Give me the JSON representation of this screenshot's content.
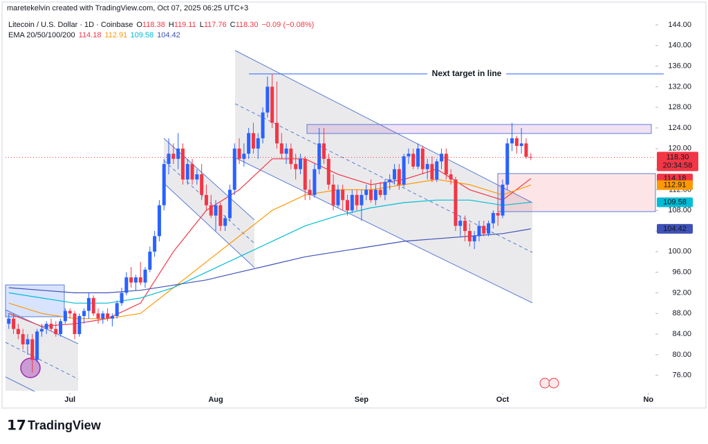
{
  "header": {
    "credit": "maretekelvin created with TradingView.com, Oct 07, 2025 06:25 UTC+3"
  },
  "chart_data": {
    "type": "candlestick",
    "title": "Litecoin / U.S. Dollar · 1D · Coinbase",
    "ohlc": [
      {
        "label": "O",
        "value": "118.38"
      },
      {
        "label": "H",
        "value": "119.11"
      },
      {
        "label": "L",
        "value": "117.76"
      },
      {
        "label": "C",
        "value": "118.30"
      }
    ],
    "change": "−0.09 (−0.08%)",
    "indicator": "EMA 20/50/100/200",
    "up_color": "#2962ff",
    "down_color": "#f23645",
    "candles": [
      [
        86,
        88,
        85,
        87
      ],
      [
        87,
        88,
        84,
        85
      ],
      [
        85,
        86,
        83,
        84
      ],
      [
        84,
        85,
        81,
        82
      ],
      [
        82,
        84,
        80,
        83
      ],
      [
        83,
        84,
        76.5,
        79
      ],
      [
        79,
        85,
        78.5,
        84.5
      ],
      [
        84.5,
        86,
        83.5,
        85
      ],
      [
        85,
        86.5,
        84,
        86
      ],
      [
        86,
        87,
        84.5,
        85
      ],
      [
        85,
        86.5,
        83.5,
        84
      ],
      [
        84,
        87,
        83.5,
        86.5
      ],
      [
        86.5,
        89,
        86,
        88.5
      ],
      [
        88.5,
        89,
        87,
        88
      ],
      [
        88,
        88.5,
        83,
        84
      ],
      [
        84,
        88,
        83.5,
        87.5
      ],
      [
        87.5,
        89,
        86,
        88.5
      ],
      [
        88.5,
        92,
        87,
        91
      ],
      [
        91,
        91.5,
        87.5,
        88
      ],
      [
        88,
        89,
        86,
        87
      ],
      [
        87,
        88.5,
        86,
        88
      ],
      [
        88,
        89,
        86.5,
        87
      ],
      [
        87,
        88,
        85.5,
        87.5
      ],
      [
        87.5,
        90.5,
        87,
        90
      ],
      [
        90,
        93,
        89.5,
        92
      ],
      [
        92,
        96,
        91.5,
        95
      ],
      [
        95,
        97,
        93,
        94
      ],
      [
        94,
        95.5,
        92.5,
        95
      ],
      [
        95,
        98,
        93.5,
        94
      ],
      [
        94,
        97,
        93,
        96.5
      ],
      [
        96.5,
        101,
        96,
        100
      ],
      [
        100,
        104,
        99,
        103
      ],
      [
        103,
        110,
        102,
        109
      ],
      [
        109,
        118,
        108,
        117
      ],
      [
        117,
        122,
        115,
        119
      ],
      [
        119,
        121,
        117,
        118
      ],
      [
        118,
        123,
        116,
        120
      ],
      [
        120,
        121,
        113,
        114
      ],
      [
        114,
        118,
        113,
        117
      ],
      [
        117,
        118,
        113,
        114
      ],
      [
        114,
        116,
        113,
        115
      ],
      [
        115,
        117,
        110,
        111
      ],
      [
        111,
        113,
        108,
        109
      ],
      [
        109,
        111,
        106.5,
        107
      ],
      [
        107,
        110,
        104,
        109
      ],
      [
        109,
        109.5,
        104,
        105
      ],
      [
        105,
        107,
        104,
        106.5
      ],
      [
        106.5,
        113,
        106,
        112
      ],
      [
        112,
        121,
        111,
        120
      ],
      [
        120,
        122,
        117,
        118
      ],
      [
        118,
        121,
        116.5,
        119
      ],
      [
        119,
        124,
        118,
        123
      ],
      [
        123,
        125,
        119,
        120
      ],
      [
        120,
        123,
        118,
        122
      ],
      [
        122,
        128,
        121,
        127
      ],
      [
        127,
        134,
        126,
        132
      ],
      [
        132,
        134.5,
        124,
        125
      ],
      [
        125,
        133,
        120,
        121
      ],
      [
        121,
        123,
        118,
        119
      ],
      [
        119,
        121,
        117,
        120
      ],
      [
        120,
        121,
        116,
        117
      ],
      [
        117,
        119,
        114,
        116
      ],
      [
        116,
        119,
        115,
        118
      ],
      [
        118,
        118.5,
        110,
        112
      ],
      [
        112,
        114,
        110,
        111
      ],
      [
        111,
        117,
        110.5,
        116
      ],
      [
        116,
        124,
        115,
        121
      ],
      [
        121,
        124,
        117,
        118
      ],
      [
        118,
        119,
        112,
        113
      ],
      [
        113,
        115,
        108,
        109
      ],
      [
        109,
        113,
        108.5,
        112
      ],
      [
        112,
        113,
        108,
        110
      ],
      [
        110,
        111,
        107,
        108
      ],
      [
        108,
        112,
        107.5,
        111
      ],
      [
        111,
        112,
        108,
        109
      ],
      [
        109,
        112,
        106,
        111
      ],
      [
        111,
        113,
        110,
        112
      ],
      [
        112,
        114,
        109.5,
        110
      ],
      [
        110,
        113,
        109,
        112
      ],
      [
        112,
        113.5,
        110.5,
        111
      ],
      [
        111,
        114,
        110,
        113.5
      ],
      [
        113.5,
        115,
        112,
        114
      ],
      [
        114,
        117,
        113,
        116
      ],
      [
        116,
        117,
        112,
        113
      ],
      [
        113,
        119,
        112.5,
        118.5
      ],
      [
        118.5,
        120,
        117,
        119
      ],
      [
        119,
        120,
        116,
        116.5
      ],
      [
        116.5,
        121,
        116,
        120
      ],
      [
        120,
        120.5,
        115,
        116
      ],
      [
        116,
        118,
        114,
        117
      ],
      [
        117,
        118.5,
        113.5,
        114
      ],
      [
        114,
        118,
        113.5,
        117.5
      ],
      [
        117.5,
        120,
        116,
        119
      ],
      [
        119,
        120,
        114,
        115
      ],
      [
        115,
        116,
        113,
        114
      ],
      [
        114,
        114.5,
        104,
        105
      ],
      [
        105,
        107,
        103,
        106
      ],
      [
        106,
        107,
        102,
        104
      ],
      [
        104,
        105.5,
        101,
        102
      ],
      [
        102,
        104,
        100.5,
        103
      ],
      [
        103,
        106,
        102,
        105
      ],
      [
        105,
        106,
        103,
        103.5
      ],
      [
        103.5,
        106,
        103,
        105.5
      ],
      [
        105.5,
        108,
        104.5,
        107.5
      ],
      [
        107.5,
        109,
        105,
        107
      ],
      [
        107,
        114,
        106.5,
        113
      ],
      [
        113,
        122,
        112,
        121
      ],
      [
        121,
        125,
        119.5,
        122
      ],
      [
        122,
        122.5,
        119,
        120.5
      ],
      [
        120.5,
        124,
        119,
        121
      ],
      [
        121,
        122,
        118,
        118.4
      ],
      [
        118.38,
        119.11,
        117.76,
        118.3
      ]
    ],
    "lines": [
      {
        "color": "#f23645",
        "x": [
          0,
          7,
          14,
          21,
          28,
          35,
          42,
          49,
          56,
          63,
          70,
          77,
          84,
          91,
          98,
          105,
          111
        ],
        "values": [
          88,
          85.5,
          86,
          87,
          90,
          100,
          108,
          112,
          118,
          118,
          115,
          113,
          114,
          116,
          112,
          110,
          114.18
        ]
      },
      {
        "color": "#ff9800",
        "x": [
          0,
          7,
          14,
          21,
          28,
          35,
          42,
          49,
          56,
          63,
          70,
          77,
          84,
          91,
          98,
          105,
          111
        ],
        "values": [
          90,
          88,
          87,
          87,
          88,
          93,
          98,
          103,
          108,
          111,
          112,
          112,
          113,
          114,
          113,
          111,
          112.91
        ]
      },
      {
        "color": "#00bcd4",
        "x": [
          0,
          7,
          14,
          21,
          28,
          35,
          42,
          49,
          56,
          63,
          70,
          77,
          84,
          91,
          98,
          105,
          111
        ],
        "values": [
          92,
          91,
          90,
          90,
          91,
          93,
          96,
          99,
          102,
          105,
          107,
          108.5,
          109.5,
          110,
          110,
          109,
          109.58
        ]
      },
      {
        "color": "#3f51b5",
        "x": [
          0,
          7,
          14,
          21,
          28,
          35,
          42,
          49,
          56,
          63,
          70,
          77,
          84,
          91,
          98,
          105,
          111
        ],
        "values": [
          93,
          92.5,
          92,
          92,
          92.5,
          93.5,
          94.5,
          96,
          97.5,
          99,
          100,
          101,
          102,
          102.5,
          103,
          103.5,
          104.42
        ]
      }
    ],
    "price_badge": {
      "value": 118.3,
      "label": "118.30",
      "countdown": "20:34:58",
      "color": "#f23645"
    },
    "annotation": {
      "text": "Next target in line",
      "value": 134.48
    },
    "xlim": [
      -0.7,
      137.5
    ],
    "xticks": [
      {
        "value": 13,
        "label": "Jul"
      },
      {
        "value": 44,
        "label": "Aug"
      },
      {
        "value": 75,
        "label": "Sep"
      },
      {
        "value": 105,
        "label": "Oct"
      },
      {
        "value": 136,
        "label": "No"
      }
    ],
    "ylim": [
      72.6,
      145.07
    ],
    "yticks": [
      {
        "value": 144,
        "label": "144.00"
      },
      {
        "value": 140,
        "label": "140.00"
      },
      {
        "value": 136,
        "label": "136.00"
      },
      {
        "value": 132,
        "label": "132.00"
      },
      {
        "value": 128,
        "label": "128.00"
      },
      {
        "value": 124,
        "label": "124.00"
      },
      {
        "value": 120,
        "label": "120.00"
      },
      {
        "value": 116,
        "label": "116.00"
      },
      {
        "value": 112,
        "label": "112.00"
      },
      {
        "value": 108,
        "label": "108.00"
      },
      {
        "value": 104,
        "label": "104.00"
      },
      {
        "value": 100,
        "label": "100.00"
      },
      {
        "value": 96,
        "label": "96.00"
      },
      {
        "value": 92,
        "label": "92.00"
      },
      {
        "value": 88,
        "label": "88.00"
      },
      {
        "value": 84,
        "label": "84.00"
      },
      {
        "value": 80,
        "label": "80.00"
      },
      {
        "value": 76,
        "label": "76.00"
      }
    ]
  },
  "footer": {
    "brand": "TradingView"
  }
}
